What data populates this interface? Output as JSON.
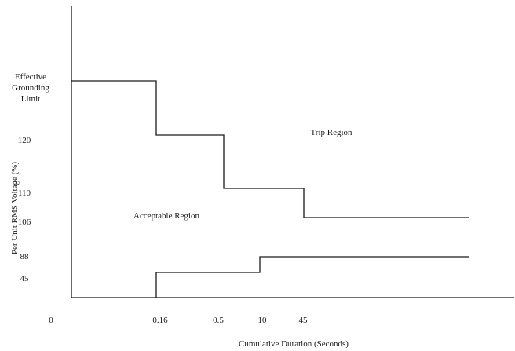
{
  "chart_data": {
    "type": "line",
    "title": "",
    "xlabel": "Cumulative Duration (Seconds)",
    "ylabel": "Per Unit RMS Voltage (%)",
    "x_ticks": [
      "0",
      "0.16",
      "0.5",
      "10",
      "45"
    ],
    "y_ticks": [
      "45",
      "88",
      "106",
      "110",
      "120"
    ],
    "y_top_label": [
      "Effective",
      "Grounding",
      "Limit"
    ],
    "grid": false,
    "legend": "none",
    "series": [
      {
        "points": [
          {
            "x": "0",
            "y": "Effective Grounding Limit"
          },
          {
            "x": "0.16",
            "y": "Effective Grounding Limit"
          },
          {
            "x": "0.16",
            "y": "120"
          },
          {
            "x": "0.5",
            "y": "120"
          },
          {
            "x": "0.5",
            "y": "110"
          },
          {
            "x": "45",
            "y": "110"
          },
          {
            "x": "45",
            "y": "106"
          },
          {
            "x": "end",
            "y": "106"
          }
        ]
      },
      {
        "points": [
          {
            "x": "0.16",
            "y": "0"
          },
          {
            "x": "0.16",
            "y": "45"
          },
          {
            "x": "10",
            "y": "45"
          },
          {
            "x": "10",
            "y": "88"
          },
          {
            "x": "end",
            "y": "88"
          }
        ]
      }
    ],
    "annotations": [
      "Trip Region",
      "Acceptable Region"
    ]
  }
}
